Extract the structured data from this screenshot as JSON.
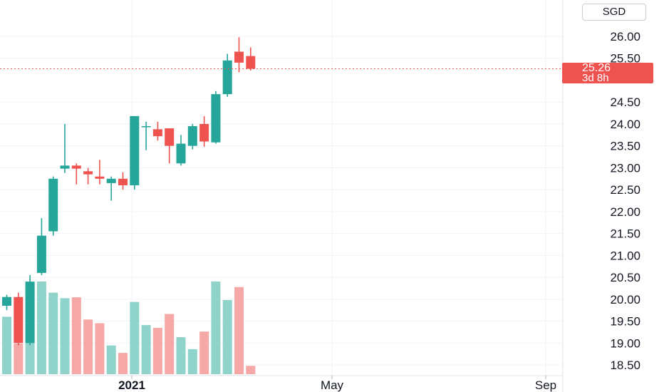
{
  "chart_data": {
    "type": "candlestick",
    "currency": "SGD",
    "last_price_label": "25.26",
    "countdown_label": "3d 8h",
    "y_ticks": [
      "26.00",
      "25.50",
      "24.50",
      "24.00",
      "23.50",
      "23.00",
      "22.50",
      "22.00",
      "21.50",
      "21.00",
      "20.50",
      "20.00",
      "19.50",
      "19.00",
      "18.50"
    ],
    "x_ticks": [
      {
        "label": "2021",
        "bold": true
      },
      {
        "label": "May",
        "bold": false
      },
      {
        "label": "Sep",
        "bold": false
      }
    ],
    "ylim": [
      18.35,
      26.45
    ],
    "last_price": 25.26,
    "grid": true,
    "candles": [
      {
        "o": 19.85,
        "h": 20.1,
        "l": 19.75,
        "c": 20.05,
        "v": 0.62
      },
      {
        "o": 20.05,
        "h": 20.15,
        "l": 18.95,
        "c": 19.0,
        "v": 0.33
      },
      {
        "o": 19.0,
        "h": 20.55,
        "l": 18.95,
        "c": 20.4,
        "v": 1.0
      },
      {
        "o": 20.6,
        "h": 21.85,
        "l": 20.55,
        "c": 21.45,
        "v": 1.0
      },
      {
        "o": 21.55,
        "h": 22.8,
        "l": 21.45,
        "c": 22.75,
        "v": 0.88
      },
      {
        "o": 22.98,
        "h": 24.0,
        "l": 22.88,
        "c": 23.05,
        "v": 0.82
      },
      {
        "o": 23.05,
        "h": 23.1,
        "l": 22.62,
        "c": 22.98,
        "v": 0.83
      },
      {
        "o": 22.92,
        "h": 23.0,
        "l": 22.62,
        "c": 22.85,
        "v": 0.59
      },
      {
        "o": 22.8,
        "h": 23.18,
        "l": 22.62,
        "c": 22.75,
        "v": 0.55
      },
      {
        "o": 22.65,
        "h": 22.8,
        "l": 22.25,
        "c": 22.75,
        "v": 0.31
      },
      {
        "o": 22.75,
        "h": 22.9,
        "l": 22.5,
        "c": 22.6,
        "v": 0.23
      },
      {
        "o": 22.6,
        "h": 24.15,
        "l": 22.5,
        "c": 24.18,
        "v": 0.78
      },
      {
        "o": 23.95,
        "h": 24.05,
        "l": 23.4,
        "c": 23.95,
        "v": 0.53
      },
      {
        "o": 23.88,
        "h": 24.05,
        "l": 23.62,
        "c": 23.72,
        "v": 0.5
      },
      {
        "o": 23.9,
        "h": 23.9,
        "l": 23.1,
        "c": 23.5,
        "v": 0.65
      },
      {
        "o": 23.1,
        "h": 23.75,
        "l": 23.05,
        "c": 23.55,
        "v": 0.4
      },
      {
        "o": 23.5,
        "h": 24.0,
        "l": 23.42,
        "c": 23.95,
        "v": 0.27
      },
      {
        "o": 24.0,
        "h": 24.18,
        "l": 23.48,
        "c": 23.6,
        "v": 0.46
      },
      {
        "o": 23.58,
        "h": 24.75,
        "l": 23.55,
        "c": 24.68,
        "v": 1.0
      },
      {
        "o": 24.68,
        "h": 25.6,
        "l": 24.62,
        "c": 25.45,
        "v": 0.8
      },
      {
        "o": 25.65,
        "h": 25.98,
        "l": 25.18,
        "c": 25.4,
        "v": 0.94
      },
      {
        "o": 25.55,
        "h": 25.75,
        "l": 25.22,
        "c": 25.26,
        "v": 0.09
      }
    ],
    "colors": {
      "up": "#26a69a",
      "down": "#ef5350",
      "up_volume": "#8fd3cb",
      "down_volume": "#f5a8a6",
      "grid": "#f0f3fa",
      "axis_text": "#131722"
    }
  }
}
